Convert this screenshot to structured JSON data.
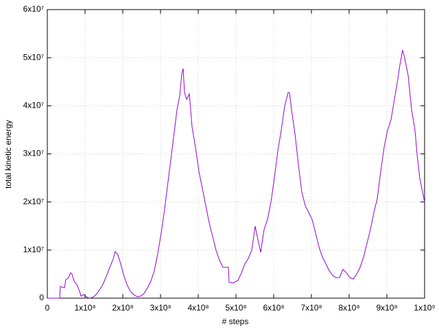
{
  "chart_data": {
    "type": "line",
    "xlabel": "# steps",
    "ylabel": "total kinetic energy",
    "x": [
      0,
      32700000.0,
      34500000.0,
      45500000.0,
      49100000.0,
      56400000.0,
      61800000.0,
      65500000.0,
      70900000.0,
      78200000.0,
      85500000.0,
      89100000.0,
      96400000.0,
      103600000.0,
      110900000.0,
      120000000.0,
      129100000.0,
      138200000.0,
      147300000.0,
      156400000.0,
      165500000.0,
      174500000.0,
      180000000.0,
      187300000.0,
      194500000.0,
      201800000.0,
      210900000.0,
      220000000.0,
      229100000.0,
      238200000.0,
      247300000.0,
      256400000.0,
      265500000.0,
      274500000.0,
      283600000.0,
      292700000.0,
      301800000.0,
      310900000.0,
      320000000.0,
      329100000.0,
      338200000.0,
      343600000.0,
      350900000.0,
      356400000.0,
      360000000.0,
      363600000.0,
      369100000.0,
      376400000.0,
      383600000.0,
      392700000.0,
      401800000.0,
      410900000.0,
      420000000.0,
      429100000.0,
      438200000.0,
      447300000.0,
      456400000.0,
      465500000.0,
      480000000.0,
      481800000.0,
      492700000.0,
      505500000.0,
      514500000.0,
      523600000.0,
      532700000.0,
      541800000.0,
      550900000.0,
      556400000.0,
      565500000.0,
      574500000.0,
      583600000.0,
      592700000.0,
      601800000.0,
      610900000.0,
      620000000.0,
      629100000.0,
      638200000.0,
      641800000.0,
      647300000.0,
      656400000.0,
      665500000.0,
      674500000.0,
      683600000.0,
      692700000.0,
      701800000.0,
      710900000.0,
      720000000.0,
      729100000.0,
      738200000.0,
      747300000.0,
      756400000.0,
      765500000.0,
      774500000.0,
      783600000.0,
      792700000.0,
      801800000.0,
      810900000.0,
      820000000.0,
      829100000.0,
      838200000.0,
      847300000.0,
      856400000.0,
      865500000.0,
      874500000.0,
      883600000.0,
      892700000.0,
      901800000.0,
      910900000.0,
      920000000.0,
      929100000.0,
      934500000.0,
      941800000.0,
      947300000.0,
      956400000.0,
      965500000.0,
      974500000.0,
      980000000.0,
      987300000.0,
      992700000.0,
      1000000000.0
    ],
    "series": [
      {
        "color": "#9400d3",
        "values": [
          0,
          0,
          2420000.0,
          2140000.0,
          3850000.0,
          4280000.0,
          5270000.0,
          4990000.0,
          3560000.0,
          2850000.0,
          1430000.0,
          430000.0,
          710000.0,
          290000.0,
          0,
          140000.0,
          710000.0,
          1710000.0,
          2850000.0,
          4560000.0,
          6410000.0,
          8120000.0,
          9690000.0,
          8980000.0,
          7130000.0,
          4990000.0,
          2850000.0,
          1430000.0,
          710000.0,
          290000.0,
          430000.0,
          1000000.0,
          2140000.0,
          3560000.0,
          5700000.0,
          9260000.0,
          13540000.0,
          18530000.0,
          24230000.0,
          29930000.0,
          35630000.0,
          39190000.0,
          42040000.0,
          46600000.0,
          47740000.0,
          42750000.0,
          41330000.0,
          42470000.0,
          35630000.0,
          31350000.0,
          26370000.0,
          22800000.0,
          19240000.0,
          15680000.0,
          12830000.0,
          9980000.0,
          7840000.0,
          6410000.0,
          6410000.0,
          3280000.0,
          3140000.0,
          3710000.0,
          5270000.0,
          7130000.0,
          8270000.0,
          9980000.0,
          14960000.0,
          12830000.0,
          9550000.0,
          14250000.0,
          16390000.0,
          19950000.0,
          24940000.0,
          30640000.0,
          34920000.0,
          39900000.0,
          42750000.0,
          42750000.0,
          39190000.0,
          34200000.0,
          27790000.0,
          22090000.0,
          19240000.0,
          17810000.0,
          16390000.0,
          13540000.0,
          10690000.0,
          8550000.0,
          7130000.0,
          5700000.0,
          4700000.0,
          4280000.0,
          4280000.0,
          5990000.0,
          5270000.0,
          4280000.0,
          3990000.0,
          4990000.0,
          6410000.0,
          8550000.0,
          11400000.0,
          14250000.0,
          17810000.0,
          20660000.0,
          26360000.0,
          31350000.0,
          34920000.0,
          37050000.0,
          41330000.0,
          45600000.0,
          48450000.0,
          51590000.0,
          49880000.0,
          46320000.0,
          39190000.0,
          34920000.0,
          29930000.0,
          24940000.0,
          22800000.0,
          19950000.0
        ]
      }
    ],
    "xlim": [
      0,
      1000000000.0
    ],
    "ylim": [
      0,
      60000000.0
    ],
    "xticks": [
      0,
      {
        "value": 100000000.0,
        "label": "1x10⁸"
      },
      {
        "value": 200000000.0,
        "label": "2x10⁸"
      },
      {
        "value": 300000000.0,
        "label": "3x10⁸"
      },
      {
        "value": 400000000.0,
        "label": "4x10⁸"
      },
      {
        "value": 500000000.0,
        "label": "5x10⁸"
      },
      {
        "value": 600000000.0,
        "label": "6x10⁸"
      },
      {
        "value": 700000000.0,
        "label": "7x10⁸"
      },
      {
        "value": 800000000.0,
        "label": "8x10⁸"
      },
      {
        "value": 900000000.0,
        "label": "9x10⁸"
      },
      {
        "value": 1000000000.0,
        "label": "1x10⁹"
      }
    ],
    "yticks": [
      0,
      {
        "value": 10000000.0,
        "label": "1x10⁷"
      },
      {
        "value": 20000000.0,
        "label": "2x10⁷"
      },
      {
        "value": 30000000.0,
        "label": "3x10⁷"
      },
      {
        "value": 40000000.0,
        "label": "4x10⁷"
      },
      {
        "value": 50000000.0,
        "label": "5x10⁷"
      },
      {
        "value": 60000000.0,
        "label": "6x10⁷"
      }
    ],
    "grid": true
  }
}
